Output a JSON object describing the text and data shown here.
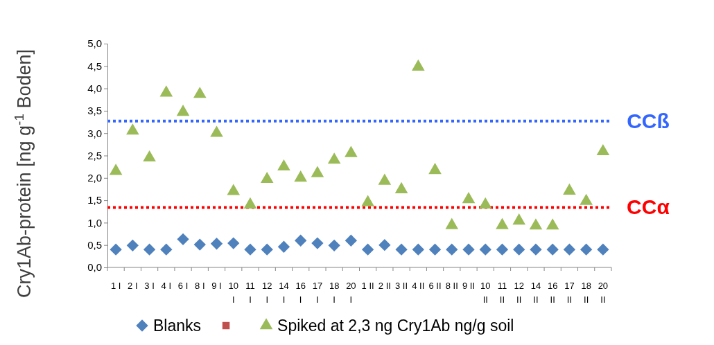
{
  "chart_data": {
    "type": "scatter",
    "ylabel": "Cry1Ab-protein [ng g$^{-1}$ Boden]",
    "categories": [
      "1 I",
      "2 I",
      "3 I",
      "4 I",
      "6 I",
      "8 I",
      "9 I",
      "10 I",
      "11 I",
      "12 I",
      "14 I",
      "16 I",
      "17 I",
      "18 I",
      "20 I",
      "1 II",
      "2 II",
      "3 II",
      "4 II",
      "6 II",
      "8 II",
      "9 II",
      "10 II",
      "11 II",
      "12 II",
      "14 II",
      "16 II",
      "17 II",
      "18 II",
      "20 II"
    ],
    "series": [
      {
        "name": "Blanks",
        "color": "#4f81bd",
        "marker": "diamond",
        "values": [
          0.4,
          0.49,
          0.4,
          0.4,
          0.63,
          0.51,
          0.53,
          0.54,
          0.4,
          0.4,
          0.46,
          0.6,
          0.54,
          0.49,
          0.6,
          0.4,
          0.5,
          0.4,
          0.4,
          0.4,
          0.4,
          0.4,
          0.4,
          0.4,
          0.4,
          0.4,
          0.4,
          0.4,
          0.4,
          0.4
        ]
      },
      {
        "color": "#c0504d",
        "marker": "square",
        "values": [
          null,
          null,
          null,
          null,
          null,
          null,
          null,
          null,
          null,
          null,
          null,
          null,
          null,
          null,
          null,
          null,
          null,
          null,
          null,
          null,
          null,
          null,
          null,
          null,
          null,
          null,
          null,
          null,
          null,
          null
        ]
      },
      {
        "name": "Spiked at 2,3 ng Cry1Ab ng/g soil",
        "color": "#9bbb59",
        "marker": "triangle",
        "values": [
          2.15,
          3.05,
          2.45,
          3.9,
          3.47,
          3.87,
          3.0,
          1.7,
          1.4,
          1.97,
          2.25,
          2.0,
          2.1,
          2.4,
          2.55,
          1.45,
          1.93,
          1.74,
          4.48,
          2.17,
          0.94,
          1.52,
          1.4,
          0.94,
          1.04,
          0.93,
          0.93,
          1.71,
          1.48,
          2.59
        ]
      }
    ],
    "ylim": [
      0,
      5
    ],
    "yticks": [
      {
        "value": 0,
        "label": "0,0"
      },
      {
        "value": 0.5,
        "label": "0,5"
      },
      {
        "value": 1,
        "label": "1,0"
      },
      {
        "value": 1.5,
        "label": "1,5"
      },
      {
        "value": 2,
        "label": "2,0"
      },
      {
        "value": 2.5,
        "label": "2,5"
      },
      {
        "value": 3,
        "label": "3,0"
      },
      {
        "value": 3.5,
        "label": "3,5"
      },
      {
        "value": 4,
        "label": "4,0"
      },
      {
        "value": 4.5,
        "label": "4,5"
      },
      {
        "value": 5,
        "label": "5,0"
      }
    ],
    "ref_lines": [
      {
        "axis": "y",
        "value": 3.27,
        "label": "CCß",
        "color": "#3366ff",
        "line_style": "dotted"
      },
      {
        "axis": "y",
        "value": 1.34,
        "label": "CCα",
        "color": "#ff0000",
        "line_style": "dotted"
      }
    ],
    "grid": false,
    "legend": "bottom"
  }
}
